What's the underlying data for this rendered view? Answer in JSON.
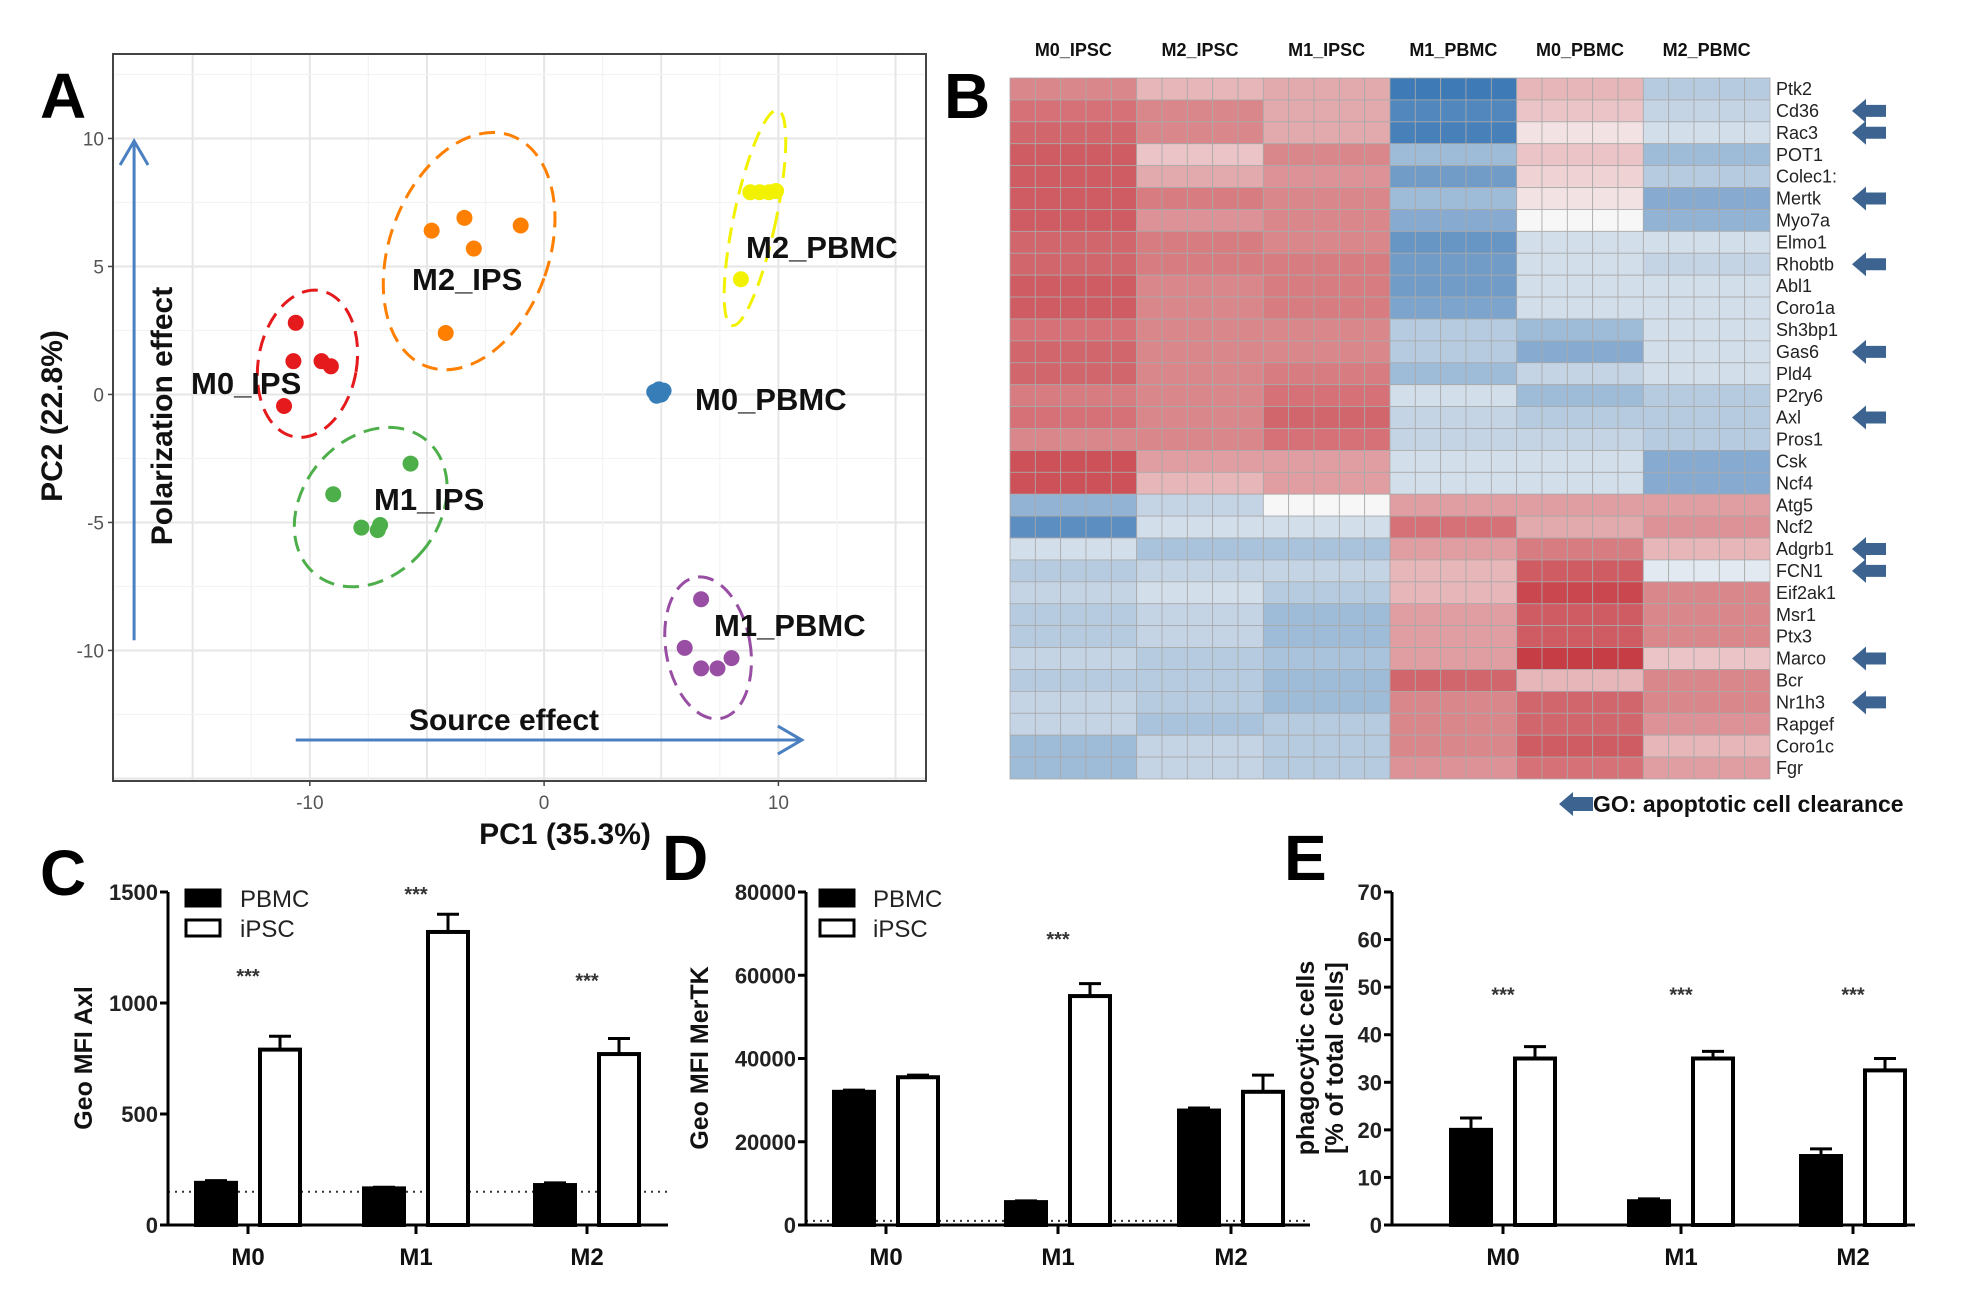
{
  "panel_letters": {
    "A": "A",
    "B": "B",
    "C": "C",
    "D": "D",
    "E": "E"
  },
  "chart_data": [
    {
      "panel": "A",
      "type": "scatter",
      "xlabel": "PC1 (35.3%)",
      "ylabel": "PC2 (22.8%)",
      "xlim": [
        -18.4,
        16.3
      ],
      "ylim": [
        -15.1,
        13.3
      ],
      "xticks": [
        -10,
        0,
        10
      ],
      "yticks": [
        -10,
        -5,
        0,
        5,
        10
      ],
      "grid": true,
      "annotations": {
        "vertical_arrow": "Polarization effect",
        "horizontal_arrow": "Source effect"
      },
      "arrow_color": "#4a7fc1",
      "series": [
        {
          "name": "M0_IPS",
          "color": "#e41a1c",
          "points": [
            [
              -10.6,
              2.8
            ],
            [
              -10.7,
              1.3
            ],
            [
              -9.5,
              1.3
            ],
            [
              -9.1,
              1.1
            ],
            [
              -11.1,
              -0.45
            ]
          ],
          "ellipse": {
            "cx": -10.1,
            "cy": 1.2,
            "rx": 2.1,
            "ry": 2.9,
            "angle": 10
          }
        },
        {
          "name": "M2_IPS",
          "color": "#ff7f00",
          "points": [
            [
              -4.8,
              6.4
            ],
            [
              -3.4,
              6.9
            ],
            [
              -3.0,
              5.7
            ],
            [
              -1.0,
              6.6
            ],
            [
              -4.2,
              2.4
            ]
          ],
          "ellipse": {
            "cx": -3.2,
            "cy": 5.6,
            "rx": 3.4,
            "ry": 4.8,
            "angle": 20
          }
        },
        {
          "name": "M1_IPS",
          "color": "#4daf4a",
          "points": [
            [
              -9.0,
              -3.9
            ],
            [
              -5.7,
              -2.7
            ],
            [
              -7.8,
              -5.2
            ],
            [
              -7.1,
              -5.3
            ],
            [
              -7.0,
              -5.1
            ]
          ],
          "ellipse": {
            "cx": -7.4,
            "cy": -4.4,
            "rx": 2.9,
            "ry": 3.4,
            "angle": 40
          }
        },
        {
          "name": "M2_PBMC",
          "color": "#f2f200",
          "points": [
            [
              8.8,
              7.9
            ],
            [
              9.2,
              7.9
            ],
            [
              9.6,
              7.9
            ],
            [
              9.9,
              7.95
            ],
            [
              8.4,
              4.5
            ]
          ],
          "ellipse": {
            "cx": 9.0,
            "cy": 6.9,
            "rx": 0.9,
            "ry": 4.3,
            "angle": 12
          }
        },
        {
          "name": "M0_PBMC",
          "color": "#377eb8",
          "points": [
            [
              4.7,
              0.1
            ],
            [
              4.9,
              0.2
            ],
            [
              5.0,
              0.0
            ],
            [
              4.8,
              -0.05
            ],
            [
              5.1,
              0.15
            ]
          ]
        },
        {
          "name": "M1_PBMC",
          "color": "#984ea3",
          "points": [
            [
              6.7,
              -8.0
            ],
            [
              6.0,
              -9.9
            ],
            [
              6.7,
              -10.7
            ],
            [
              7.4,
              -10.7
            ],
            [
              8.0,
              -10.3
            ]
          ],
          "ellipse": {
            "cx": 7.0,
            "cy": -9.9,
            "rx": 1.8,
            "ry": 2.8,
            "angle": -10
          }
        }
      ]
    },
    {
      "panel": "B",
      "type": "heatmap",
      "columns": [
        "M0_IPSC",
        "M2_IPSC",
        "M1_IPSC",
        "M1_PBMC",
        "M0_PBMC",
        "M2_PBMC"
      ],
      "replicates_per_column": 5,
      "rows": [
        "Ptk2",
        "Cd36",
        "Rac3",
        "POT1",
        "Colec1:",
        "Mertk",
        "Myo7a",
        "Elmo1",
        "Rhobtb",
        "Abl1",
        "Coro1a",
        "Sh3bp1",
        "Gas6",
        "Pld4",
        "P2ry6",
        "Axl",
        "Pros1",
        "Csk",
        "Ncf4",
        "Atg5",
        "Ncf2",
        "Adgrb1",
        "FCN1",
        "Eif2ak1",
        "Msr1",
        "Ptx3",
        "Marco",
        "Bcr",
        "Nr1h3",
        "Rapgef",
        "Coro1c",
        "Fgr"
      ],
      "values": [
        [
          0.8,
          0.4,
          0.5,
          -1.5,
          0.4,
          -0.4
        ],
        [
          1.0,
          0.8,
          0.5,
          -1.3,
          0.3,
          -0.3
        ],
        [
          1.1,
          0.8,
          0.5,
          -1.4,
          0.1,
          -0.2
        ],
        [
          1.2,
          0.3,
          0.8,
          -0.6,
          0.3,
          -0.6
        ],
        [
          1.2,
          0.5,
          0.7,
          -1.0,
          0.2,
          -0.4
        ],
        [
          1.2,
          0.9,
          0.8,
          -0.6,
          0.1,
          -0.8
        ],
        [
          1.2,
          0.7,
          0.8,
          -0.8,
          0.0,
          -0.7
        ],
        [
          1.1,
          0.9,
          0.8,
          -1.1,
          -0.2,
          -0.2
        ],
        [
          1.1,
          0.9,
          0.9,
          -1.0,
          -0.2,
          -0.3
        ],
        [
          1.2,
          0.8,
          0.9,
          -1.0,
          -0.2,
          -0.2
        ],
        [
          1.2,
          0.8,
          0.9,
          -0.9,
          -0.2,
          -0.2
        ],
        [
          1.0,
          0.8,
          0.8,
          -0.4,
          -0.6,
          -0.2
        ],
        [
          1.1,
          0.8,
          0.8,
          -0.4,
          -0.8,
          -0.2
        ],
        [
          1.1,
          0.8,
          0.9,
          -0.6,
          -0.3,
          -0.2
        ],
        [
          0.9,
          0.8,
          1.0,
          -0.2,
          -0.6,
          -0.4
        ],
        [
          1.0,
          0.8,
          1.1,
          -0.3,
          -0.4,
          -0.4
        ],
        [
          0.8,
          0.8,
          1.0,
          -0.3,
          -0.3,
          -0.4
        ],
        [
          1.3,
          0.6,
          0.6,
          -0.2,
          -0.2,
          -0.8
        ],
        [
          1.3,
          0.4,
          0.6,
          -0.2,
          -0.2,
          -0.8
        ],
        [
          -0.7,
          -0.3,
          0.0,
          0.6,
          0.6,
          0.6
        ],
        [
          -1.2,
          -0.2,
          -0.2,
          1.0,
          0.5,
          0.7
        ],
        [
          -0.2,
          -0.5,
          -0.5,
          0.6,
          0.9,
          0.4
        ],
        [
          -0.4,
          -0.3,
          -0.3,
          0.4,
          1.2,
          -0.1
        ],
        [
          -0.3,
          -0.2,
          -0.4,
          0.4,
          1.4,
          0.8
        ],
        [
          -0.4,
          -0.3,
          -0.6,
          0.6,
          1.2,
          0.8
        ],
        [
          -0.4,
          -0.3,
          -0.6,
          0.6,
          1.2,
          0.8
        ],
        [
          -0.3,
          -0.4,
          -0.5,
          0.6,
          1.5,
          0.3
        ],
        [
          -0.4,
          -0.4,
          -0.6,
          1.1,
          0.4,
          0.8
        ],
        [
          -0.3,
          -0.4,
          -0.6,
          0.8,
          1.1,
          0.8
        ],
        [
          -0.3,
          -0.5,
          -0.4,
          0.8,
          1.1,
          0.7
        ],
        [
          -0.6,
          -0.3,
          -0.4,
          0.8,
          1.2,
          0.4
        ],
        [
          -0.6,
          -0.3,
          -0.4,
          0.7,
          1.0,
          0.6
        ]
      ],
      "color_scale": {
        "low": "#2166ac",
        "mid": "#f7f7f7",
        "high": "#c0202a"
      },
      "marked_rows": [
        "Cd36",
        "Rac3",
        "Mertk",
        "Rhobtb",
        "Gas6",
        "Axl",
        "Adgrb1",
        "FCN1",
        "Marco",
        "Nr1h3"
      ],
      "marker_color": "#3d6491",
      "legend": "GO: apoptotic cell clearance"
    },
    {
      "panel": "C",
      "type": "bar",
      "categories": [
        "M0",
        "M1",
        "M2"
      ],
      "ylabel": "Geo MFI Axl",
      "ylim": [
        0,
        1500
      ],
      "yticks": [
        0,
        500,
        1000,
        1500
      ],
      "series": [
        {
          "name": "PBMC",
          "fill": "#000000",
          "values": [
            190,
            165,
            180
          ],
          "errors": [
            10,
            5,
            10
          ]
        },
        {
          "name": "iPSC",
          "fill": "#ffffff",
          "values": [
            790,
            1320,
            770
          ],
          "errors": [
            60,
            80,
            70
          ]
        }
      ],
      "reference_line": 150,
      "significance": [
        {
          "category": "M0",
          "text": "***",
          "y": 1090
        },
        {
          "category": "M1",
          "text": "***",
          "y": 1460
        },
        {
          "category": "M2",
          "text": "***",
          "y": 1070
        }
      ],
      "legend": "top-left"
    },
    {
      "panel": "D",
      "type": "bar",
      "categories": [
        "M0",
        "M1",
        "M2"
      ],
      "ylabel": "Geo MFI  MerTK",
      "ylim": [
        0,
        80000
      ],
      "yticks": [
        0,
        20000,
        40000,
        60000,
        80000
      ],
      "series": [
        {
          "name": "PBMC",
          "fill": "#000000",
          "values": [
            32000,
            5500,
            27500
          ],
          "errors": [
            400,
            300,
            600
          ]
        },
        {
          "name": "iPSC",
          "fill": "#ffffff",
          "values": [
            35500,
            55000,
            32000
          ],
          "errors": [
            500,
            3000,
            4000
          ]
        }
      ],
      "reference_line": 1000,
      "significance": [
        {
          "category": "M1",
          "text": "***",
          "y": 67000
        }
      ],
      "legend": "top-left"
    },
    {
      "panel": "E",
      "type": "bar",
      "categories": [
        "M0",
        "M1",
        "M2"
      ],
      "ylabel": [
        "phagocytic cells",
        "[% of total cells]"
      ],
      "ylim": [
        0,
        70
      ],
      "yticks": [
        0,
        10,
        20,
        30,
        40,
        50,
        60,
        70
      ],
      "series": [
        {
          "name": "PBMC",
          "fill": "#000000",
          "values": [
            20,
            5,
            14.5
          ],
          "errors": [
            2.5,
            0.5,
            1.5
          ]
        },
        {
          "name": "iPSC",
          "fill": "#ffffff",
          "values": [
            35,
            35,
            32.5
          ],
          "errors": [
            2.5,
            1.5,
            2.5
          ]
        }
      ],
      "significance": [
        {
          "category": "M0",
          "text": "***",
          "y": 47
        },
        {
          "category": "M1",
          "text": "***",
          "y": 47
        },
        {
          "category": "M2",
          "text": "***",
          "y": 47
        }
      ]
    }
  ]
}
